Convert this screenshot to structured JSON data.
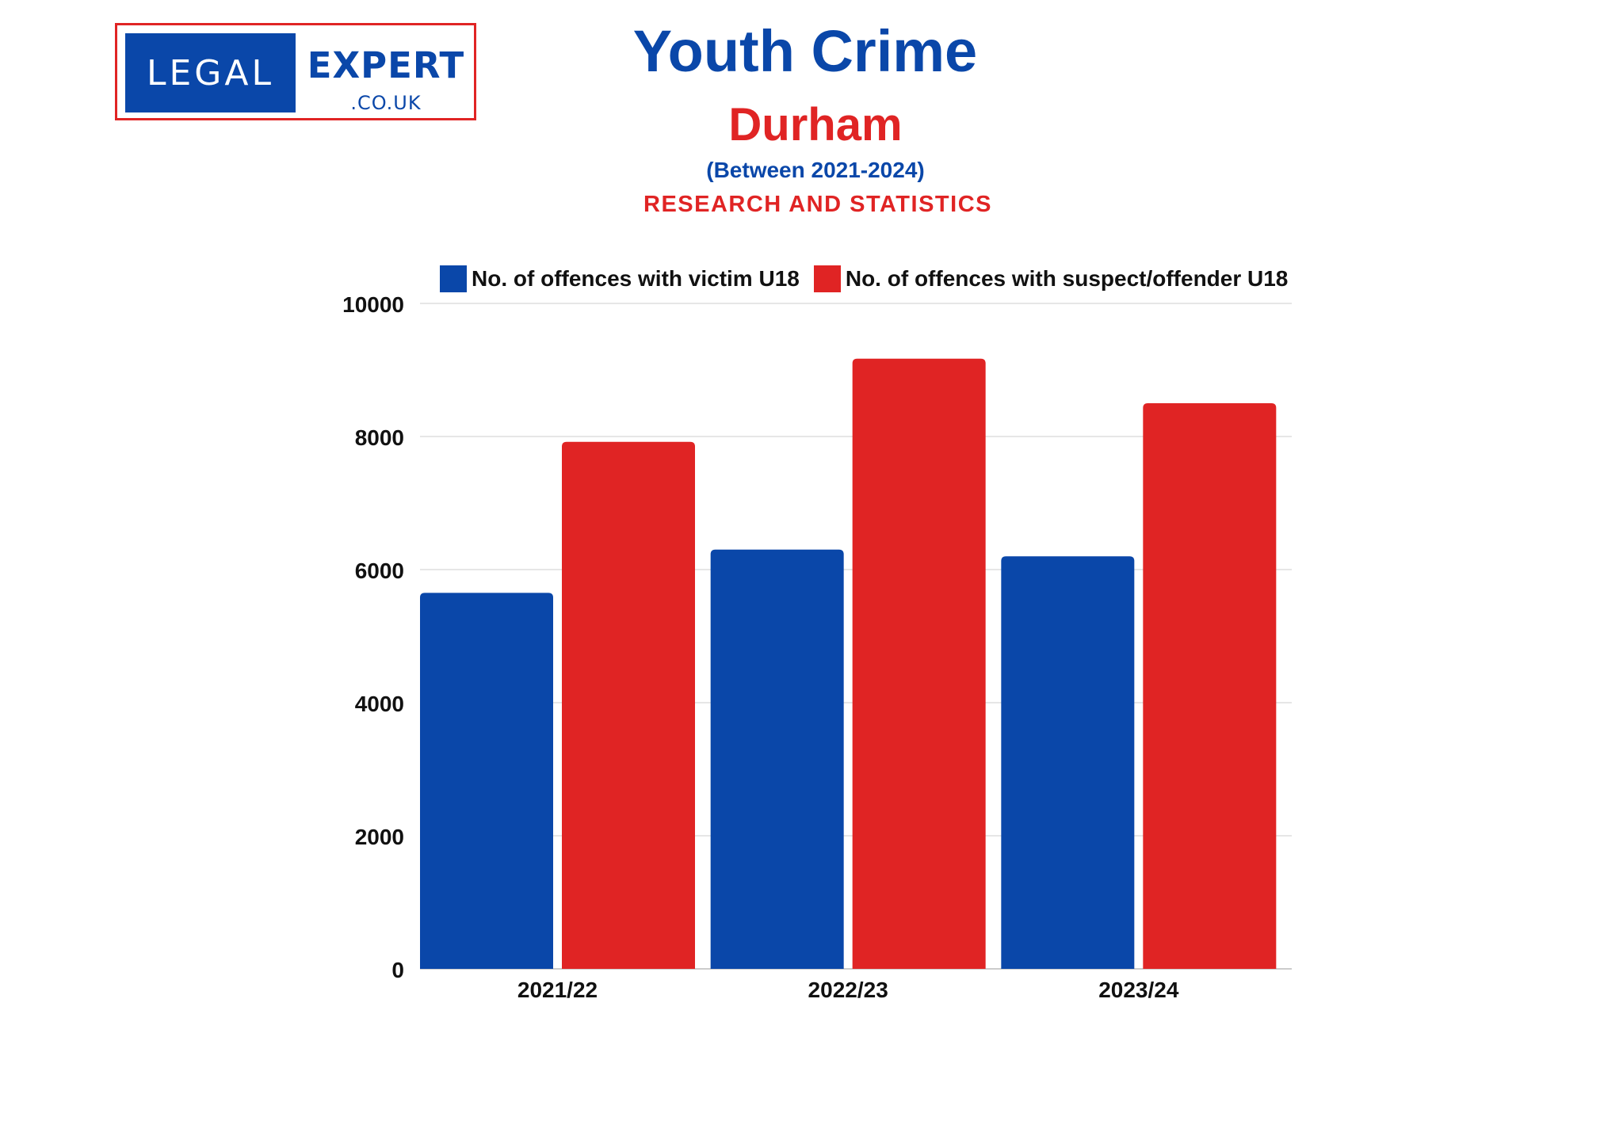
{
  "logo": {
    "left_text": "LEGAL",
    "right_text": "EXPERT",
    "domain_text": ".CO.UK"
  },
  "colors": {
    "blue": "#0a47a9",
    "red": "#e02424",
    "grid": "#e6e6e6",
    "axis": "#cccccc"
  },
  "chart_data": {
    "type": "bar",
    "title": "Youth Crime",
    "subtitle": "Durham",
    "period": "(Between 2021-2024)",
    "section": "RESEARCH AND STATISTICS",
    "categories": [
      "2021/22",
      "2022/23",
      "2023/24"
    ],
    "series": [
      {
        "name": "No. of offences with victim U18",
        "values": [
          5650,
          6300,
          6200
        ],
        "color": "#0a47a9"
      },
      {
        "name": "No. of offences with suspect/offender U18",
        "values": [
          7920,
          9170,
          8500
        ],
        "color": "#e02424"
      }
    ],
    "ylim": [
      0,
      10000
    ],
    "yticks": [
      "0",
      "2000",
      "4000",
      "6000",
      "8000",
      "10000"
    ],
    "grid": true,
    "legend_position": "top"
  }
}
